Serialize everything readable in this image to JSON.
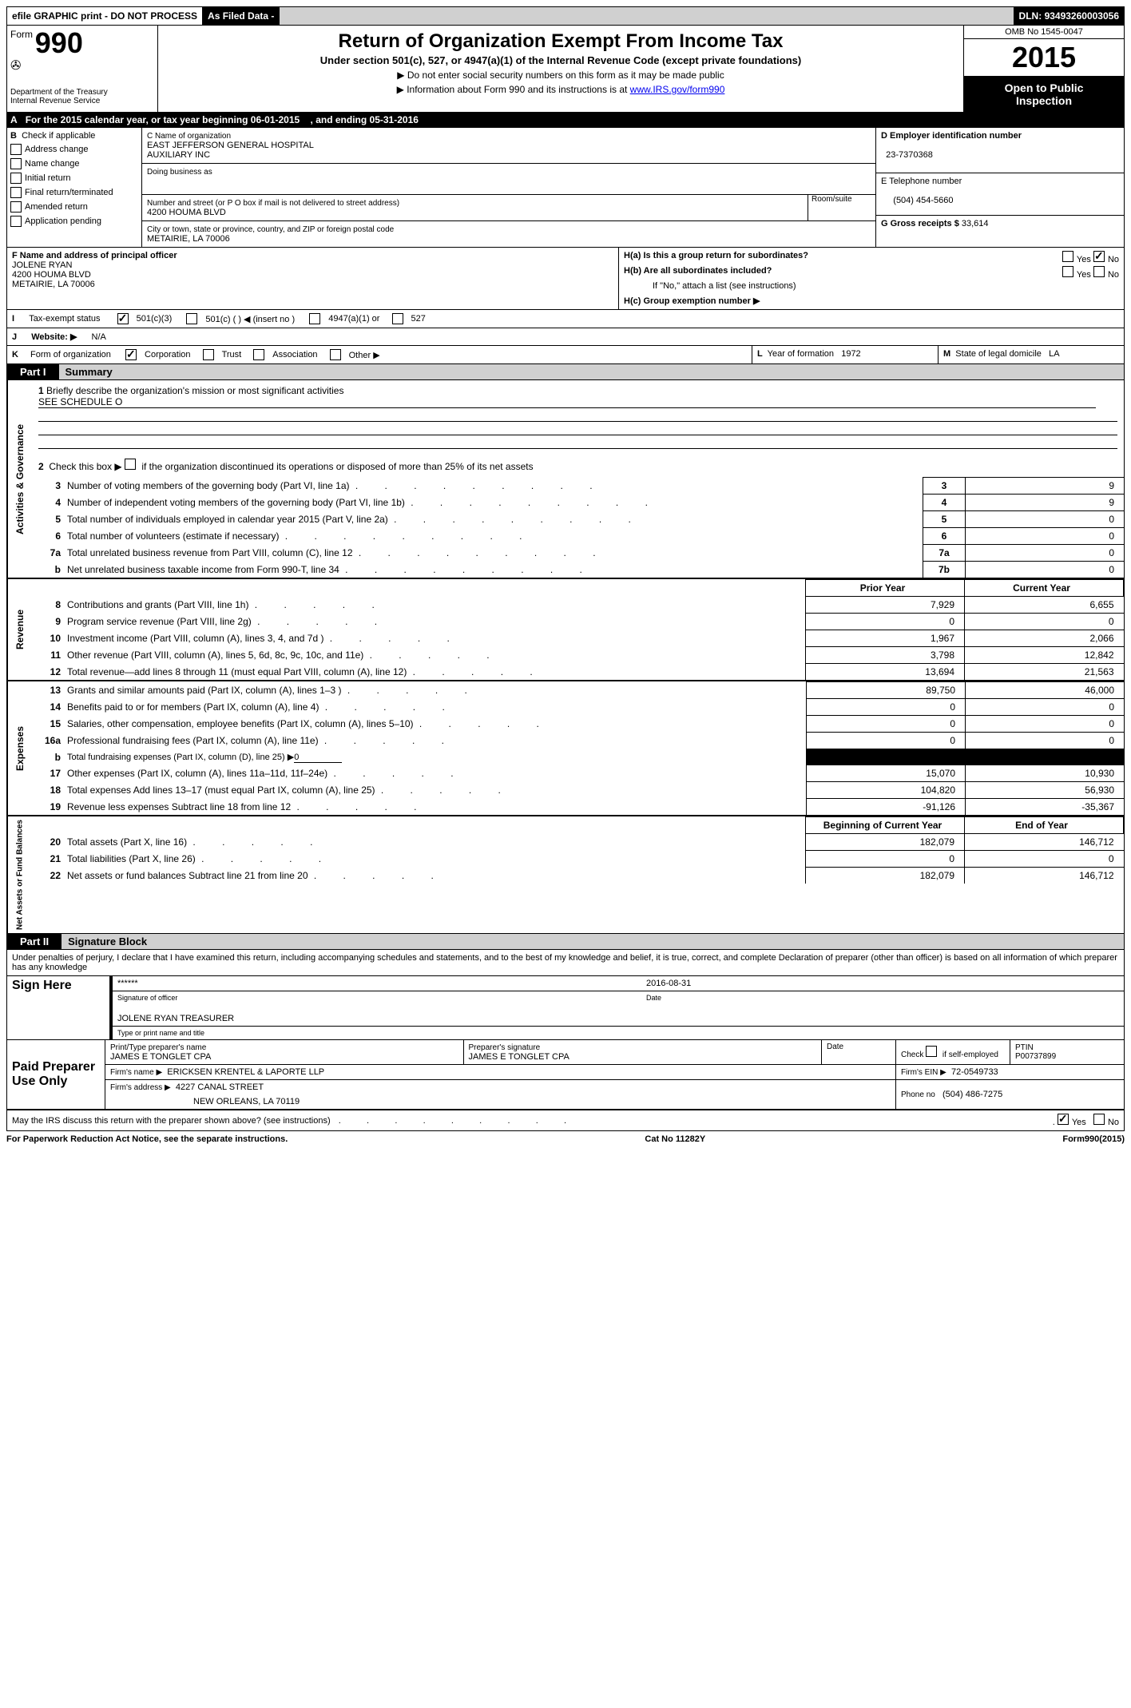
{
  "top_bar": {
    "efile": "efile GRAPHIC print - DO NOT PROCESS",
    "as_filed": "As Filed Data -",
    "dln_label": "DLN:",
    "dln": "93493260003056"
  },
  "header": {
    "form_word": "Form",
    "form_num": "990",
    "dept": "Department of the Treasury",
    "irs": "Internal Revenue Service",
    "title": "Return of Organization Exempt From Income Tax",
    "subtitle": "Under section 501(c), 527, or 4947(a)(1) of the Internal Revenue Code (except private foundations)",
    "arrow1": "▶ Do not enter social security numbers on this form as it may be made public",
    "arrow2_pre": "▶ Information about Form 990 and its instructions is at ",
    "arrow2_link": "www.IRS.gov/form990",
    "omb": "OMB No 1545-0047",
    "year": "2015",
    "inspection1": "Open to Public",
    "inspection2": "Inspection"
  },
  "row_a": {
    "label": "A",
    "text1": "For the 2015 calendar year, or tax year beginning 06-01-2015",
    "text2": ", and ending 05-31-2016"
  },
  "col_b": {
    "label": "B",
    "check_label": "Check if applicable",
    "opts": [
      "Address change",
      "Name change",
      "Initial return",
      "Final return/terminated",
      "Amended return",
      "Application pending"
    ]
  },
  "col_c": {
    "name_label": "C Name of organization",
    "name1": "EAST JEFFERSON GENERAL HOSPITAL",
    "name2": "AUXILIARY INC",
    "dba_label": "Doing business as",
    "addr_label": "Number and street (or P O  box if mail is not delivered to street address)",
    "addr": "4200 HOUMA BLVD",
    "room_label": "Room/suite",
    "city_label": "City or town, state or province, country, and ZIP or foreign postal code",
    "city": "METAIRIE, LA  70006"
  },
  "col_d": {
    "label": "D Employer identification number",
    "ein": "23-7370368",
    "e_label": "E Telephone number",
    "phone": "(504) 454-5660",
    "g_label": "G Gross receipts $",
    "g_val": "33,614"
  },
  "col_f": {
    "label": "F    Name and address of principal officer",
    "name": "JOLENE RYAN",
    "addr1": "4200 HOUMA BLVD",
    "addr2": "METAIRIE, LA  70006"
  },
  "col_h": {
    "ha": "H(a)  Is this a group return for subordinates?",
    "hb": "H(b)  Are all subordinates included?",
    "hnote": "If \"No,\" attach a list  (see instructions)",
    "hc": "H(c)   Group exemption number ▶",
    "yes": "Yes",
    "no": "No"
  },
  "row_i": {
    "label": "I",
    "text": "Tax-exempt status",
    "opt1": "501(c)(3)",
    "opt2": "501(c) (   ) ◀ (insert no )",
    "opt3": "4947(a)(1) or",
    "opt4": "527"
  },
  "row_j": {
    "label": "J",
    "text": "Website: ▶",
    "val": "N/A"
  },
  "row_k": {
    "label": "K",
    "text": "Form of organization",
    "opts": [
      "Corporation",
      "Trust",
      "Association",
      "Other ▶"
    ],
    "l_label": "L",
    "l_text": "Year of formation",
    "l_val": "1972",
    "m_label": "M",
    "m_text": "State of legal domicile",
    "m_val": "LA"
  },
  "part1": {
    "label": "Part I",
    "title": "Summary",
    "q1_num": "1",
    "q1_text": "Briefly describe the organization's mission or most significant activities",
    "q1_val": "SEE SCHEDULE O",
    "q2_num": "2",
    "q2_text": "Check this box ▶",
    "q2_tail": "if the organization discontinued its operations or disposed of more than 25% of its net assets",
    "gov_rows": [
      {
        "n": "3",
        "label": "Number of voting members of the governing body (Part VI, line 1a)",
        "ref": "3",
        "val": "9"
      },
      {
        "n": "4",
        "label": "Number of independent voting members of the governing body (Part VI, line 1b)",
        "ref": "4",
        "val": "9"
      },
      {
        "n": "5",
        "label": "Total number of individuals employed in calendar year 2015 (Part V, line 2a)",
        "ref": "5",
        "val": "0"
      },
      {
        "n": "6",
        "label": "Total number of volunteers (estimate if necessary)",
        "ref": "6",
        "val": "0"
      },
      {
        "n": "7a",
        "label": "Total unrelated business revenue from Part VIII, column (C), line 12",
        "ref": "7a",
        "val": "0"
      },
      {
        "n": "b",
        "label": "Net unrelated business taxable income from Form 990-T, line 34",
        "ref": "7b",
        "val": "0"
      }
    ],
    "prior_year_header": "Prior Year",
    "current_year_header": "Current Year",
    "rev_rows": [
      {
        "n": "8",
        "label": "Contributions and grants (Part VIII, line 1h)",
        "py": "7,929",
        "cy": "6,655"
      },
      {
        "n": "9",
        "label": "Program service revenue (Part VIII, line 2g)",
        "py": "0",
        "cy": "0"
      },
      {
        "n": "10",
        "label": "Investment income (Part VIII, column (A), lines 3, 4, and 7d )",
        "py": "1,967",
        "cy": "2,066"
      },
      {
        "n": "11",
        "label": "Other revenue (Part VIII, column (A), lines 5, 6d, 8c, 9c, 10c, and 11e)",
        "py": "3,798",
        "cy": "12,842"
      },
      {
        "n": "12",
        "label": "Total revenue—add lines 8 through 11 (must equal Part VIII, column (A), line 12)",
        "py": "13,694",
        "cy": "21,563"
      }
    ],
    "exp_rows": [
      {
        "n": "13",
        "label": "Grants and similar amounts paid (Part IX, column (A), lines 1–3 )",
        "py": "89,750",
        "cy": "46,000"
      },
      {
        "n": "14",
        "label": "Benefits paid to or for members (Part IX, column (A), line 4)",
        "py": "0",
        "cy": "0"
      },
      {
        "n": "15",
        "label": "Salaries, other compensation, employee benefits (Part IX, column (A), lines 5–10)",
        "py": "0",
        "cy": "0"
      },
      {
        "n": "16a",
        "label": "Professional fundraising fees (Part IX, column (A), line 11e)",
        "py": "0",
        "cy": "0"
      },
      {
        "n": "b",
        "label": "Total fundraising expenses (Part IX, column (D), line 25) ▶",
        "sub": "0",
        "shaded": true
      },
      {
        "n": "17",
        "label": "Other expenses (Part IX, column (A), lines 11a–11d, 11f–24e)",
        "py": "15,070",
        "cy": "10,930"
      },
      {
        "n": "18",
        "label": "Total expenses  Add lines 13–17 (must equal Part IX, column (A), line 25)",
        "py": "104,820",
        "cy": "56,930"
      },
      {
        "n": "19",
        "label": "Revenue less expenses  Subtract line 18 from line 12",
        "py": "-91,126",
        "cy": "-35,367"
      }
    ],
    "na_header_begin": "Beginning of Current Year",
    "na_header_end": "End of Year",
    "na_rows": [
      {
        "n": "20",
        "label": "Total assets (Part X, line 16)",
        "py": "182,079",
        "cy": "146,712"
      },
      {
        "n": "21",
        "label": "Total liabilities (Part X, line 26)",
        "py": "0",
        "cy": "0"
      },
      {
        "n": "22",
        "label": "Net assets or fund balances  Subtract line 21 from line 20",
        "py": "182,079",
        "cy": "146,712"
      }
    ],
    "vert_labels": {
      "gov": "Activities & Governance",
      "rev": "Revenue",
      "exp": "Expenses",
      "na": "Net Assets or Fund Balances"
    }
  },
  "part2": {
    "label": "Part II",
    "title": "Signature Block",
    "perjury": "Under penalties of perjury, I declare that I have examined this return, including accompanying schedules and statements, and to the best of my knowledge and belief, it is true, correct, and complete  Declaration of preparer (other than officer) is based on all information of which preparer has any knowledge",
    "sign_here": "Sign Here",
    "sig_stars": "******",
    "sig_officer_label": "Signature of officer",
    "sig_date": "2016-08-31",
    "sig_date_label": "Date",
    "officer_name": "JOLENE RYAN TREASURER",
    "officer_name_label": "Type or print name and title",
    "paid_prep": "Paid Preparer Use Only",
    "prep_name_label": "Print/Type preparer's name",
    "prep_name": "JAMES E TONGLET CPA",
    "prep_sig_label": "Preparer's signature",
    "prep_sig": "JAMES E TONGLET CPA",
    "prep_date_label": "Date",
    "prep_check_label": "Check",
    "prep_check_if": "if self-employed",
    "ptin_label": "PTIN",
    "ptin": "P00737899",
    "firm_name_label": "Firm's name     ▶",
    "firm_name": "ERICKSEN KRENTEL & LAPORTE LLP",
    "firm_ein_label": "Firm's EIN ▶",
    "firm_ein": "72-0549733",
    "firm_addr_label": "Firm's address ▶",
    "firm_addr1": "4227 CANAL STREET",
    "firm_addr2": "NEW ORLEANS, LA  70119",
    "phone_label": "Phone no",
    "phone": "(504) 486-7275",
    "discuss": "May the IRS discuss this return with the preparer shown above? (see instructions)",
    "yes": "Yes",
    "no": "No"
  },
  "footer": {
    "left": "For Paperwork Reduction Act Notice, see the separate instructions.",
    "mid": "Cat No 11282Y",
    "right": "Form990(2015)"
  }
}
